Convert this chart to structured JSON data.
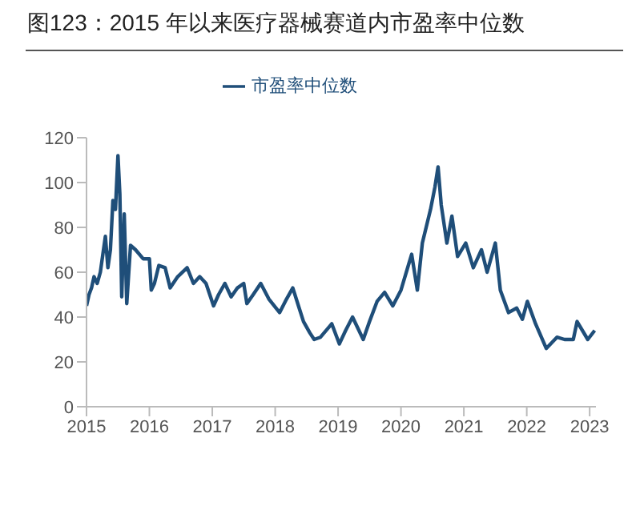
{
  "chart_data": {
    "type": "line",
    "title": "图123：2015 年以来医疗器械赛道内市盈率中位数",
    "series": [
      {
        "name": "市盈率中位数",
        "color": "#1f4e79",
        "x": [
          2015.0,
          2015.04,
          2015.08,
          2015.12,
          2015.17,
          2015.22,
          2015.26,
          2015.3,
          2015.34,
          2015.38,
          2015.42,
          2015.46,
          2015.5,
          2015.53,
          2015.56,
          2015.6,
          2015.64,
          2015.7,
          2015.78,
          2015.9,
          2016.0,
          2016.03,
          2016.08,
          2016.15,
          2016.25,
          2016.33,
          2016.45,
          2016.6,
          2016.7,
          2016.8,
          2016.9,
          2017.02,
          2017.1,
          2017.2,
          2017.3,
          2017.4,
          2017.5,
          2017.55,
          2017.65,
          2017.77,
          2017.9,
          2018.07,
          2018.18,
          2018.28,
          2018.37,
          2018.45,
          2018.55,
          2018.62,
          2018.72,
          2018.9,
          2019.02,
          2019.12,
          2019.23,
          2019.4,
          2019.5,
          2019.62,
          2019.74,
          2019.87,
          2020.0,
          2020.17,
          2020.26,
          2020.34,
          2020.47,
          2020.54,
          2020.59,
          2020.64,
          2020.73,
          2020.81,
          2020.9,
          2021.03,
          2021.15,
          2021.28,
          2021.37,
          2021.5,
          2021.58,
          2021.71,
          2021.84,
          2021.93,
          2022.01,
          2022.14,
          2022.31,
          2022.48,
          2022.6,
          2022.74,
          2022.8,
          2022.97,
          2023.08
        ],
        "values": [
          45,
          50,
          53,
          58,
          55,
          60,
          68,
          76,
          62,
          70,
          92,
          88,
          112,
          95,
          49,
          86,
          46,
          72,
          70,
          66,
          66,
          52,
          55,
          63,
          62,
          53,
          58,
          62,
          55,
          58,
          55,
          45,
          50,
          55,
          49,
          53,
          55,
          46,
          50,
          55,
          48,
          42,
          48,
          53,
          45,
          38,
          33,
          30,
          31,
          37,
          28,
          34,
          40,
          30,
          38,
          47,
          51,
          45,
          52,
          68,
          52,
          73,
          88,
          98,
          107,
          90,
          73,
          85,
          67,
          73,
          62,
          70,
          60,
          73,
          52,
          42,
          44,
          39,
          47,
          37,
          26,
          31,
          30,
          30,
          38,
          30,
          34
        ]
      }
    ],
    "xlim": [
      2015,
      2023.1
    ],
    "xticks": [
      2015,
      2016,
      2017,
      2018,
      2019,
      2020,
      2021,
      2022,
      2023
    ],
    "ylim": [
      0,
      120
    ],
    "yticks": [
      0,
      20,
      40,
      60,
      80,
      100,
      120
    ],
    "grid": false,
    "legend": "top",
    "marker": "none",
    "line_style": "solid"
  }
}
